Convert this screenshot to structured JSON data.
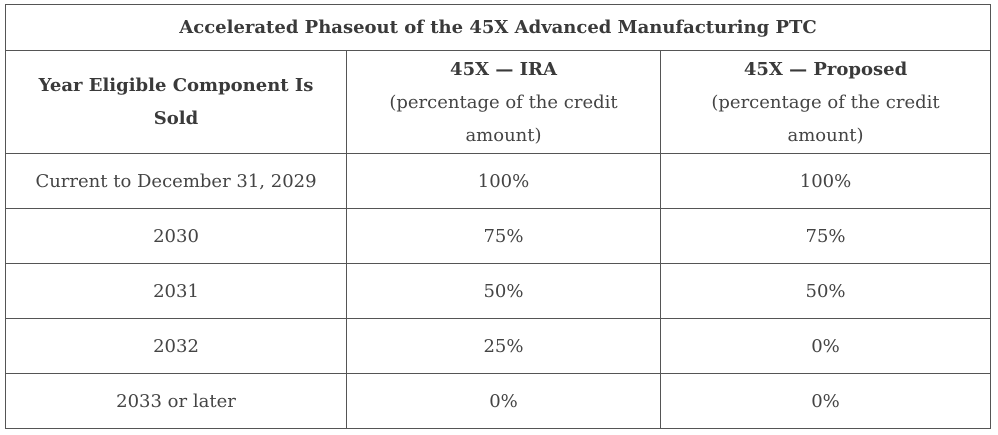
{
  "table": {
    "title": "Accelerated Phaseout of the 45X Advanced Manufacturing PTC",
    "headers": {
      "col1": "Year Eligible Component Is Sold",
      "col2_title": "45X — IRA",
      "col2_sub": "(percentage of the credit amount)",
      "col3_title": "45X — Proposed",
      "col3_sub": "(percentage of the credit amount)"
    },
    "rows": [
      {
        "year": "Current to December 31, 2029",
        "ira": "100%",
        "proposed": "100%"
      },
      {
        "year": "2030",
        "ira": "75%",
        "proposed": "75%"
      },
      {
        "year": "2031",
        "ira": "50%",
        "proposed": "50%"
      },
      {
        "year": "2032",
        "ira": "25%",
        "proposed": "0%"
      },
      {
        "year": "2033 or later",
        "ira": "0%",
        "proposed": "0%"
      }
    ]
  }
}
